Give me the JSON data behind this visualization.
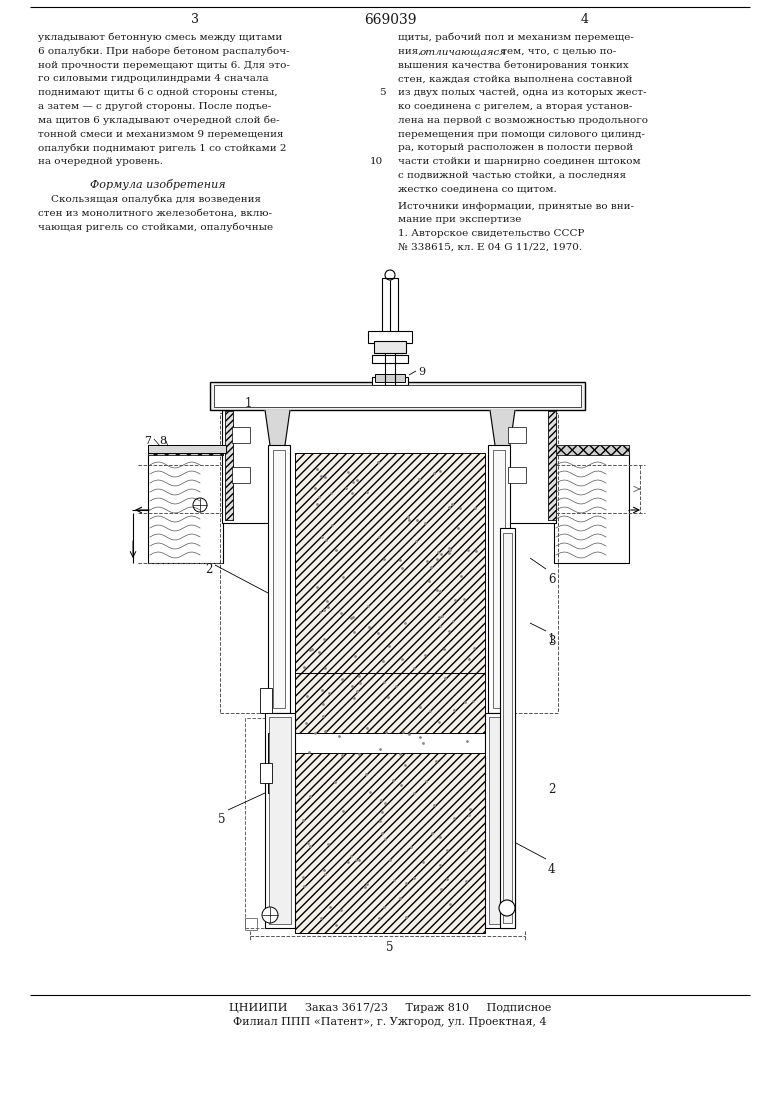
{
  "patent_number": "669039",
  "page_left": "3",
  "page_right": "4",
  "text_col1_lines": [
    "укладывают бетонную смесь между щитами",
    "6 опалубки. При наборе бетоном распалубоч-",
    "ной прочности перемещают щиты 6. Для это-",
    "го силовыми гидроцилиндрами 4 сначала",
    "поднимают щиты 6 с одной стороны стены,",
    "а затем — с другой стороны. После подъе-",
    "ма щитов 6 укладывают очередной слой бе-",
    "тонной смеси и механизмом 9 перемещения",
    "опалубки поднимают ригель 1 со стойками 2",
    "на очередной уровень."
  ],
  "formula_title": "Формула изобретения",
  "formula_text_lines": [
    "    Скользящая опалубка для возведения",
    "стен из монолитного железобетона, вклю-",
    "чающая ригель со стойками, опалубочные"
  ],
  "text_col2_lines": [
    "щиты, рабочий пол и механизм перемеще-",
    "ния, отличающаяся тем, что, с целью по-",
    "вышения качества бетонирования тонких",
    "стен, каждая стойка выполнена составной",
    "из двух полых частей, одна из которых жест-",
    "ко соединена с ригелем, а вторая установ-",
    "лена на первой с возможностью продольного",
    "перемещения при помощи силового цилинд-",
    "ра, который расположен в полости первой",
    "части стойки и шарнирно соединен штоком",
    "с подвижной частью стойки, а последняя",
    "жестко соединена со щитом."
  ],
  "sources_title": "Источники информации, принятые во вни-",
  "sources_lines": [
    "мание при экспертизе",
    "1. Авторское свидетельство СССР",
    "№ 338615, кл. Е 04 G 11/22, 1970."
  ],
  "bottom_line1": "ЦНИИПИ     Заказ 3617/23     Тираж 810     Подписное",
  "bottom_line2": "Филиал ППП «Патент», г. Ужгород, ул. Проектная, 4",
  "bg_color": "#ffffff",
  "text_color": "#1a1a1a"
}
